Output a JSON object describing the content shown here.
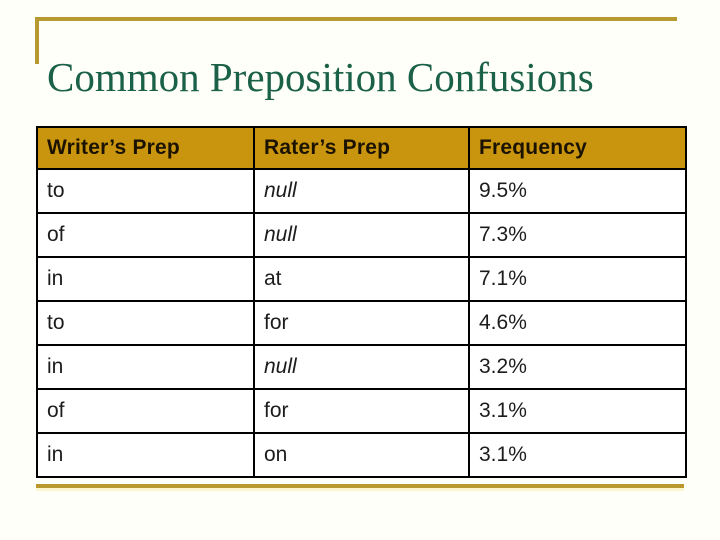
{
  "slide": {
    "title": "Common Preposition Confusions"
  },
  "colors": {
    "background": "#FFFFFA",
    "title_green": "#1A6148",
    "gold_rule": "#B79A2F",
    "pale_gold_rule": "#FCF6CF",
    "header_bg": "#C9950E",
    "header_text": "#1B1300",
    "body_text": "#1C1C1C",
    "table_border": "#000000"
  },
  "chart_data": {
    "type": "table",
    "title": "Common Preposition Confusions",
    "columns": [
      "Writer’s Prep",
      "Rater’s Prep",
      "Frequency"
    ],
    "rows": [
      [
        "to",
        "null",
        "9.5%"
      ],
      [
        "of",
        "null",
        "7.3%"
      ],
      [
        "in",
        "at",
        "7.1%"
      ],
      [
        "to",
        "for",
        "4.6%"
      ],
      [
        "in",
        "null",
        "3.2%"
      ],
      [
        "of",
        "for",
        "3.1%"
      ],
      [
        "in",
        "on",
        "3.1%"
      ]
    ],
    "italic_values": [
      "null"
    ]
  }
}
